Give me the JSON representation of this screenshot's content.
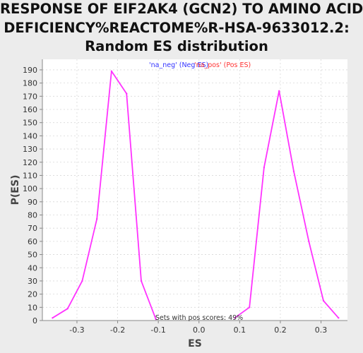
{
  "chart_data": {
    "type": "line",
    "title_lines": [
      "RESPONSE OF EIF2AK4 (GCN2) TO AMINO ACID",
      "DEFICIENCY%REACTOME%R-HSA-9633012.2:",
      "Random ES distribution"
    ],
    "xlabel": "ES",
    "ylabel": "P(ES)",
    "xlim": [
      -0.385,
      0.365
    ],
    "ylim": [
      0,
      198
    ],
    "x_ticks": [
      -0.3,
      -0.2,
      -0.1,
      0.0,
      0.1,
      0.2,
      0.3
    ],
    "x_tick_labels": [
      "-0.3",
      "-0.2",
      "-0.1",
      "0.0",
      "0.1",
      "0.2",
      "0.3"
    ],
    "y_ticks": [
      0,
      10,
      20,
      30,
      40,
      50,
      60,
      70,
      80,
      90,
      100,
      110,
      120,
      130,
      140,
      150,
      160,
      170,
      180,
      190
    ],
    "grid": true,
    "series": [
      {
        "color": "#ff33ff",
        "x": [
          -0.36,
          -0.323,
          -0.287,
          -0.251,
          -0.215,
          -0.178,
          -0.142,
          -0.106
        ],
        "y": [
          2,
          9,
          30,
          77,
          189,
          172,
          30,
          1
        ]
      },
      {
        "color": "#ff33ff",
        "x": [
          0.088,
          0.124,
          0.16,
          0.197,
          0.233,
          0.27,
          0.306,
          0.343
        ],
        "y": [
          2,
          10,
          116,
          174,
          113,
          60,
          15,
          2
        ]
      }
    ],
    "legend": {
      "placement": "top-center",
      "neg_text": "'na_neg' (Neg ES)",
      "pos_text": "'na_pos' (Pos ES)",
      "neg_color": "#3333ff",
      "pos_color": "#ff3333"
    },
    "annotation": "Sets with pos scores: 49%"
  }
}
